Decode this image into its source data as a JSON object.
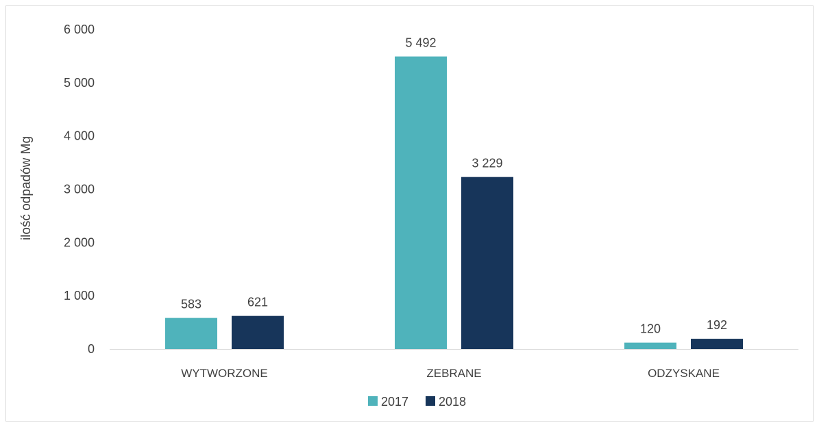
{
  "chart_data": {
    "type": "bar",
    "categories": [
      "WYTWORZONE",
      "ZEBRANE",
      "ODZYSKANE"
    ],
    "series": [
      {
        "name": "2017",
        "values": [
          583,
          5492,
          120
        ],
        "labels": [
          "583",
          "5 492",
          "120"
        ],
        "color": "#4fb3bb"
      },
      {
        "name": "2018",
        "values": [
          621,
          3229,
          192
        ],
        "labels": [
          "621",
          "3 229",
          "192"
        ],
        "color": "#17355a"
      }
    ],
    "title": "",
    "xlabel": "",
    "ylabel": "ilość odpadów Mg",
    "ylim": [
      0,
      6000
    ],
    "yticks": [
      0,
      1000,
      2000,
      3000,
      4000,
      5000,
      6000
    ],
    "ytick_labels": [
      "0",
      "1 000",
      "2 000",
      "3 000",
      "4 000",
      "5 000",
      "6 000"
    ],
    "grid": false,
    "legend": "bottom"
  }
}
